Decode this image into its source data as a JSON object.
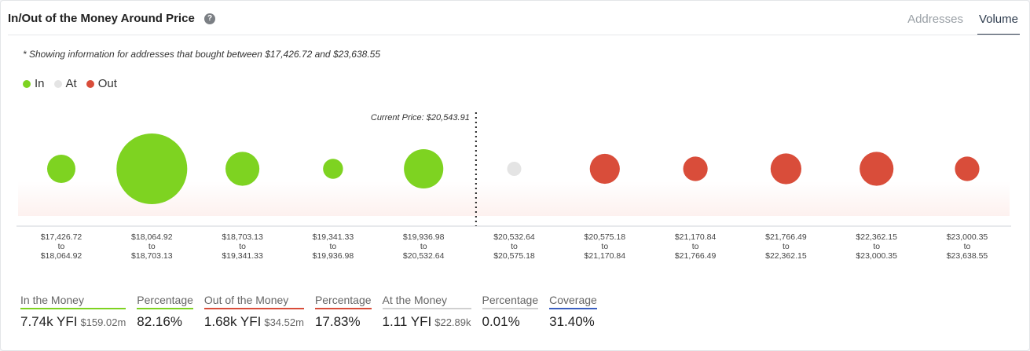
{
  "title": "In/Out of the Money Around Price",
  "tabs": [
    "Addresses",
    "Volume"
  ],
  "active_tab": "Volume",
  "note": "* Showing information for addresses that bought between $17,426.72 and $23,638.55",
  "legend": [
    {
      "label": "In",
      "color": "#7ed321"
    },
    {
      "label": "At",
      "color": "#e4e4e4"
    },
    {
      "label": "Out",
      "color": "#d94d3a"
    }
  ],
  "chart_data": {
    "type": "scatter",
    "current_price_label": "Current Price: $20,543.91",
    "current_price_after_index": 4,
    "buckets": [
      {
        "from": "$17,426.72",
        "to": "$18,064.92",
        "status": "in",
        "relative_volume": 0.16
      },
      {
        "from": "$18,064.92",
        "to": "$18,703.13",
        "status": "in",
        "relative_volume": 1.0
      },
      {
        "from": "$18,703.13",
        "to": "$19,341.33",
        "status": "in",
        "relative_volume": 0.23
      },
      {
        "from": "$19,341.33",
        "to": "$19,936.98",
        "status": "in",
        "relative_volume": 0.08
      },
      {
        "from": "$19,936.98",
        "to": "$20,532.64",
        "status": "in",
        "relative_volume": 0.31
      },
      {
        "from": "$20,532.64",
        "to": "$20,575.18",
        "status": "at",
        "relative_volume": 0.04
      },
      {
        "from": "$20,575.18",
        "to": "$21,170.84",
        "status": "out",
        "relative_volume": 0.18
      },
      {
        "from": "$21,170.84",
        "to": "$21,766.49",
        "status": "out",
        "relative_volume": 0.12
      },
      {
        "from": "$21,766.49",
        "to": "$22,362.15",
        "status": "out",
        "relative_volume": 0.19
      },
      {
        "from": "$22,362.15",
        "to": "$23,000.35",
        "status": "out",
        "relative_volume": 0.23
      },
      {
        "from": "$23,000.35",
        "to": "$23,638.55",
        "status": "out",
        "relative_volume": 0.12
      }
    ],
    "to_word": "to"
  },
  "summary": [
    {
      "label": "In the Money",
      "value": "7.74k YFI",
      "sub": "$159.02m",
      "color": "#7ed321"
    },
    {
      "label": "Percentage",
      "value": "82.16%",
      "sub": "",
      "color": "#7ed321"
    },
    {
      "label": "Out of the Money",
      "value": "1.68k YFI",
      "sub": "$34.52m",
      "color": "#d94d3a"
    },
    {
      "label": "Percentage",
      "value": "17.83%",
      "sub": "",
      "color": "#d94d3a"
    },
    {
      "label": "At the Money",
      "value": "1.11 YFI",
      "sub": "$22.89k",
      "color": "#d0d0d0"
    },
    {
      "label": "Percentage",
      "value": "0.01%",
      "sub": "",
      "color": "#d0d0d0"
    },
    {
      "label": "Coverage",
      "value": "31.40%",
      "sub": "",
      "color": "#3b5fc0"
    }
  ]
}
